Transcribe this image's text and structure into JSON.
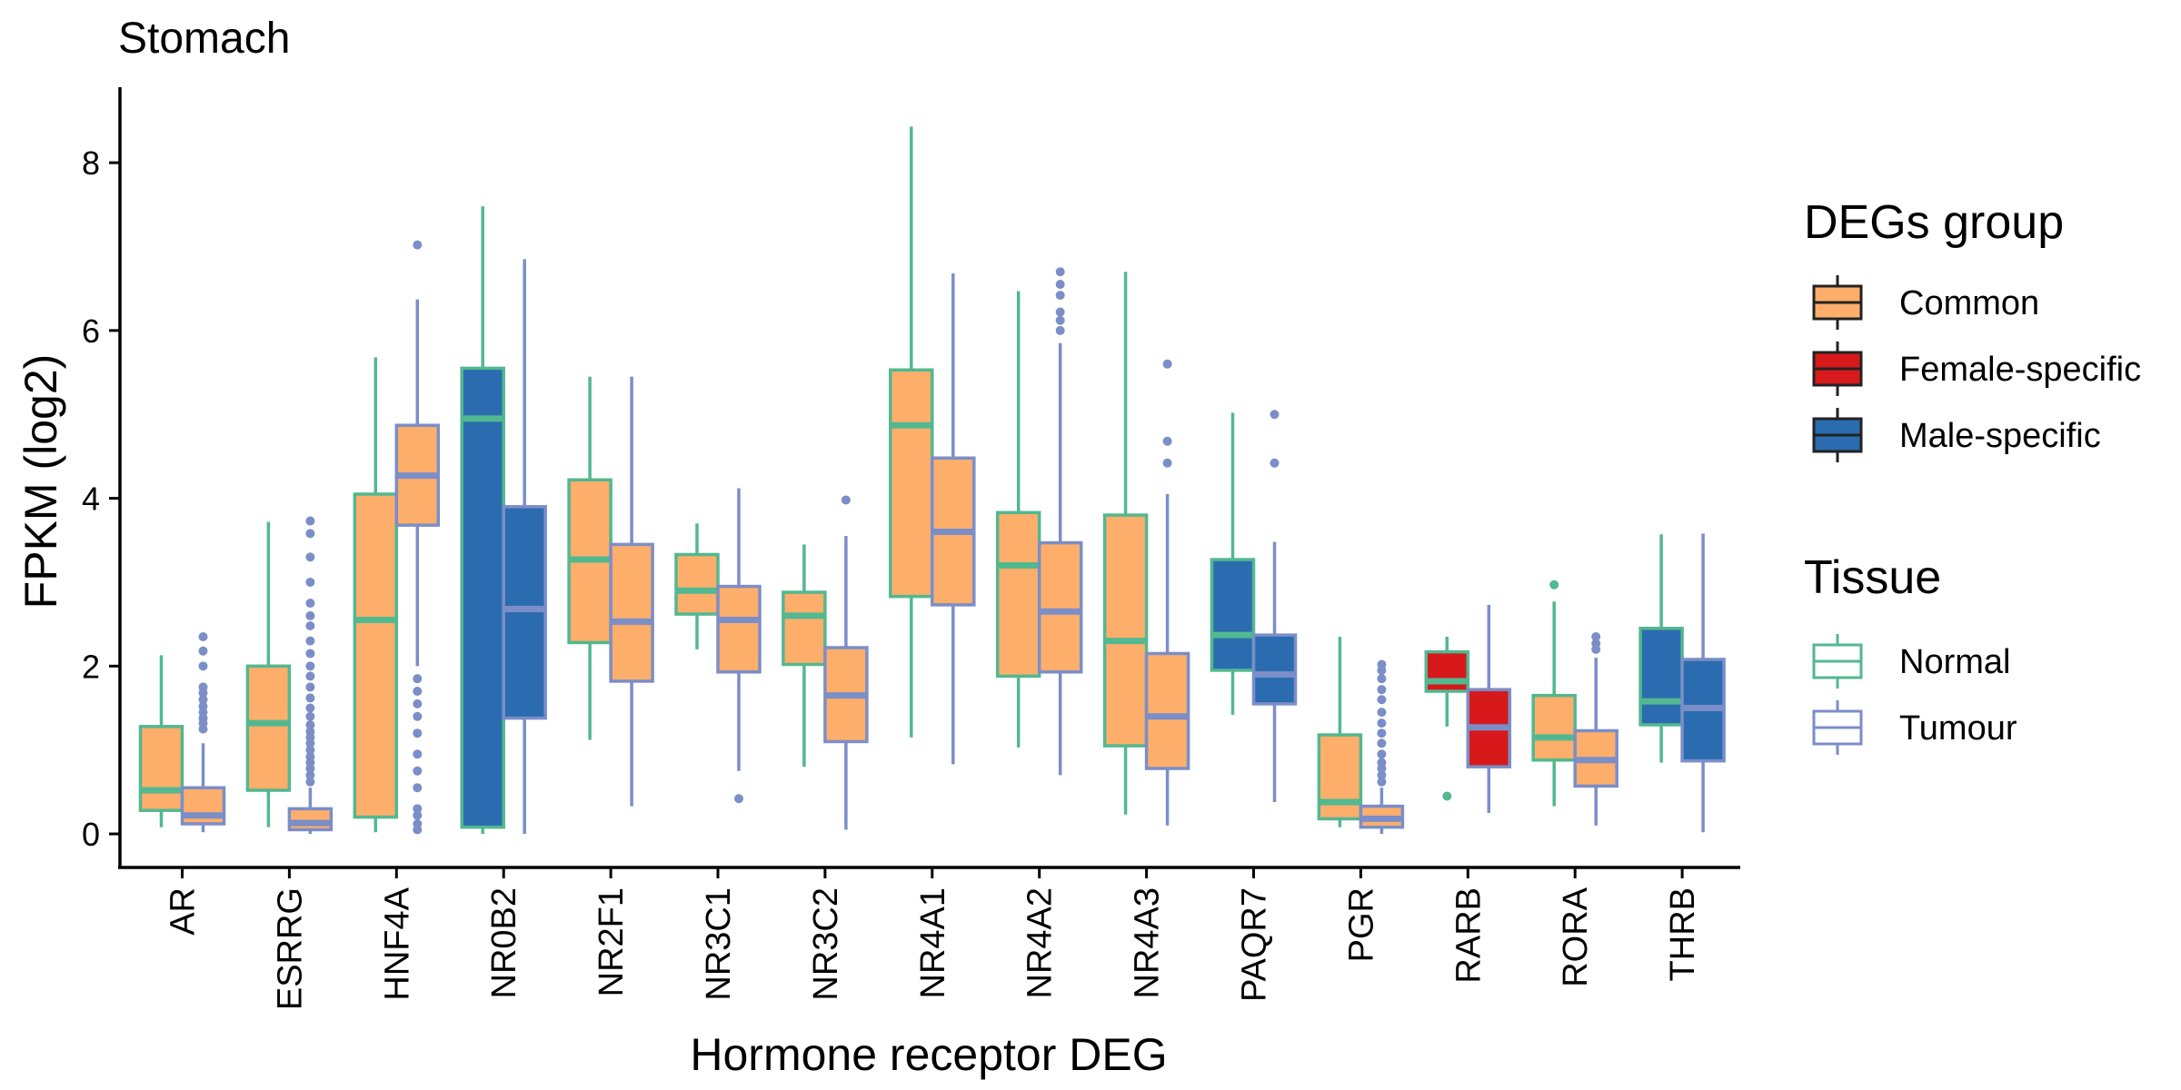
{
  "chart_data": {
    "type": "boxplot",
    "title": "Stomach",
    "xlabel": "Hormone receptor DEG",
    "ylabel": "FPKM (log2)",
    "ylim": [
      -0.4,
      8.9
    ],
    "yticks": [
      0,
      2,
      4,
      6,
      8
    ],
    "categories": [
      "AR",
      "ESRRG",
      "HNF4A",
      "NR0B2",
      "NR2F1",
      "NR3C1",
      "NR3C2",
      "NR4A1",
      "NR4A2",
      "NR4A3",
      "PAQR7",
      "PGR",
      "RARB",
      "RORA",
      "THRB"
    ],
    "category_group": [
      "Common",
      "Common",
      "Common",
      "Male-specific",
      "Common",
      "Common",
      "Common",
      "Common",
      "Common",
      "Common",
      "Male-specific",
      "Common",
      "Female-specific",
      "Common",
      "Male-specific"
    ],
    "series": [
      {
        "name": "Normal",
        "boxes": [
          {
            "min": 0.08,
            "q1": 0.28,
            "median": 0.52,
            "q3": 1.28,
            "max": 2.13,
            "outliers": []
          },
          {
            "min": 0.08,
            "q1": 0.52,
            "median": 1.32,
            "q3": 2.0,
            "max": 3.72,
            "outliers": []
          },
          {
            "min": 0.02,
            "q1": 0.2,
            "median": 2.55,
            "q3": 4.05,
            "max": 5.68,
            "outliers": []
          },
          {
            "min": 0.0,
            "q1": 0.08,
            "median": 4.95,
            "q3": 5.55,
            "max": 7.48,
            "outliers": []
          },
          {
            "min": 1.12,
            "q1": 2.28,
            "median": 3.27,
            "q3": 4.22,
            "max": 5.45,
            "outliers": []
          },
          {
            "min": 2.2,
            "q1": 2.62,
            "median": 2.9,
            "q3": 3.33,
            "max": 3.7,
            "outliers": []
          },
          {
            "min": 0.8,
            "q1": 2.02,
            "median": 2.6,
            "q3": 2.88,
            "max": 3.45,
            "outliers": []
          },
          {
            "min": 1.15,
            "q1": 2.83,
            "median": 4.87,
            "q3": 5.53,
            "max": 8.43,
            "outliers": []
          },
          {
            "min": 1.03,
            "q1": 1.88,
            "median": 3.2,
            "q3": 3.83,
            "max": 6.47,
            "outliers": []
          },
          {
            "min": 0.23,
            "q1": 1.05,
            "median": 2.3,
            "q3": 3.8,
            "max": 6.7,
            "outliers": []
          },
          {
            "min": 1.42,
            "q1": 1.95,
            "median": 2.37,
            "q3": 3.27,
            "max": 5.02,
            "outliers": []
          },
          {
            "min": 0.08,
            "q1": 0.18,
            "median": 0.38,
            "q3": 1.18,
            "max": 2.35,
            "outliers": []
          },
          {
            "min": 1.28,
            "q1": 1.7,
            "median": 1.82,
            "q3": 2.17,
            "max": 2.35,
            "outliers": [
              0.45
            ]
          },
          {
            "min": 0.33,
            "q1": 0.88,
            "median": 1.15,
            "q3": 1.65,
            "max": 2.77,
            "outliers": [
              2.97
            ]
          },
          {
            "min": 0.85,
            "q1": 1.3,
            "median": 1.58,
            "q3": 2.45,
            "max": 3.57,
            "outliers": []
          }
        ]
      },
      {
        "name": "Tumour",
        "boxes": [
          {
            "min": 0.02,
            "q1": 0.12,
            "median": 0.22,
            "q3": 0.55,
            "max": 1.08,
            "outliers": [
              1.25,
              1.32,
              1.38,
              1.45,
              1.52,
              1.6,
              1.68,
              1.75,
              2.0,
              2.18,
              2.35
            ]
          },
          {
            "min": 0.0,
            "q1": 0.05,
            "median": 0.13,
            "q3": 0.3,
            "max": 0.55,
            "outliers": [
              0.62,
              0.7,
              0.78,
              0.85,
              0.92,
              1.0,
              1.08,
              1.15,
              1.22,
              1.3,
              1.4,
              1.5,
              1.62,
              1.75,
              1.88,
              2.0,
              2.15,
              2.3,
              2.48,
              2.6,
              2.75,
              3.0,
              3.3,
              3.58,
              3.73
            ]
          },
          {
            "min": 2.0,
            "q1": 3.68,
            "median": 4.27,
            "q3": 4.87,
            "max": 6.37,
            "outliers": [
              0.05,
              0.12,
              0.22,
              0.3,
              0.55,
              0.75,
              0.95,
              1.2,
              1.4,
              1.55,
              1.7,
              1.85,
              7.02
            ]
          },
          {
            "min": 0.0,
            "q1": 1.38,
            "median": 2.68,
            "q3": 3.9,
            "max": 6.85,
            "outliers": []
          },
          {
            "min": 0.33,
            "q1": 1.82,
            "median": 2.53,
            "q3": 3.45,
            "max": 5.45,
            "outliers": []
          },
          {
            "min": 0.75,
            "q1": 1.93,
            "median": 2.55,
            "q3": 2.95,
            "max": 4.12,
            "outliers": [
              0.42
            ]
          },
          {
            "min": 0.05,
            "q1": 1.1,
            "median": 1.65,
            "q3": 2.22,
            "max": 3.55,
            "outliers": [
              3.98
            ]
          },
          {
            "min": 0.83,
            "q1": 2.73,
            "median": 3.6,
            "q3": 4.48,
            "max": 6.68,
            "outliers": []
          },
          {
            "min": 0.7,
            "q1": 1.93,
            "median": 2.65,
            "q3": 3.47,
            "max": 5.85,
            "outliers": [
              6.0,
              6.12,
              6.22,
              6.42,
              6.55,
              6.7
            ]
          },
          {
            "min": 0.1,
            "q1": 0.78,
            "median": 1.4,
            "q3": 2.15,
            "max": 4.05,
            "outliers": [
              4.42,
              4.68,
              5.6
            ]
          },
          {
            "min": 0.38,
            "q1": 1.55,
            "median": 1.9,
            "q3": 2.37,
            "max": 3.48,
            "outliers": [
              4.42,
              5.0
            ]
          },
          {
            "min": 0.0,
            "q1": 0.08,
            "median": 0.18,
            "q3": 0.33,
            "max": 0.55,
            "outliers": [
              0.62,
              0.7,
              0.78,
              0.85,
              0.95,
              1.08,
              1.2,
              1.32,
              1.45,
              1.6,
              1.72,
              1.85,
              1.95,
              2.02
            ]
          },
          {
            "min": 0.25,
            "q1": 0.8,
            "median": 1.27,
            "q3": 1.72,
            "max": 2.73,
            "outliers": []
          },
          {
            "min": 0.1,
            "q1": 0.57,
            "median": 0.88,
            "q3": 1.23,
            "max": 2.1,
            "outliers": [
              2.2,
              2.27,
              2.35
            ]
          },
          {
            "min": 0.02,
            "q1": 0.87,
            "median": 1.5,
            "q3": 2.08,
            "max": 3.58,
            "outliers": []
          }
        ]
      }
    ],
    "legend": {
      "placement": "right",
      "fill_title": "DEGs group",
      "fill_items": [
        {
          "label": "Common",
          "color": "#fdae6b"
        },
        {
          "label": "Female-specific",
          "color": "#d7191c"
        },
        {
          "label": "Male-specific",
          "color": "#2b6cb0"
        }
      ],
      "outline_title": "Tissue",
      "outline_items": [
        {
          "label": "Normal",
          "color": "#52b88f"
        },
        {
          "label": "Tumour",
          "color": "#7b8ec8"
        }
      ]
    },
    "colors": {
      "Common": "#fdae6b",
      "Female-specific": "#d7191c",
      "Male-specific": "#2b6cb0",
      "Normal": "#52b88f",
      "Tumour": "#7b8ec8",
      "legend_outline": "#222222"
    },
    "grid": false
  }
}
